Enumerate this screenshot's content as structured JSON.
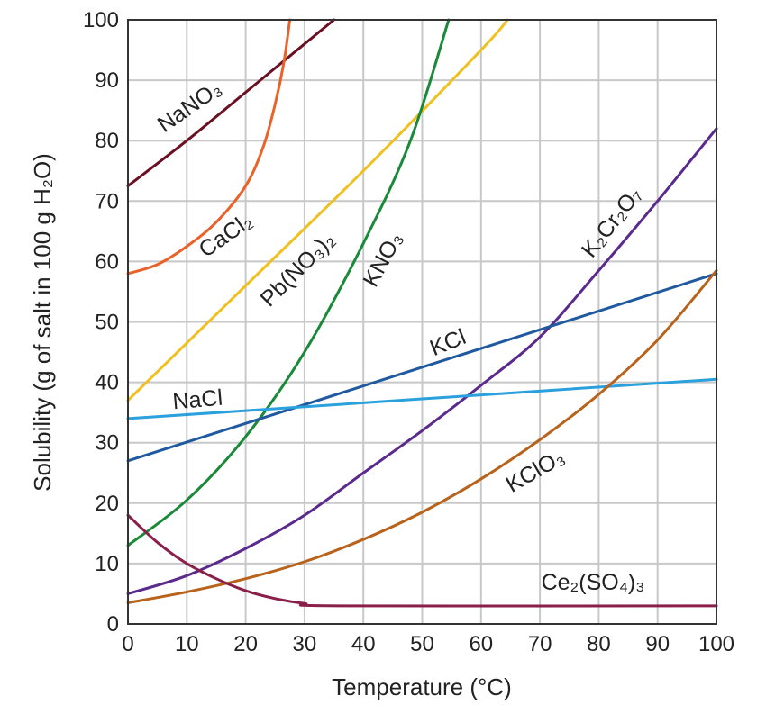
{
  "chart_data": {
    "type": "line",
    "title": "",
    "xlabel": "Temperature (°C)",
    "ylabel": "Solubility (g of salt in 100 g H₂O)",
    "xlim": [
      0,
      100
    ],
    "ylim": [
      0,
      100
    ],
    "grid": true,
    "legend": "none (curves labeled inline)",
    "x_ticks": [
      "0",
      "10",
      "20",
      "30",
      "40",
      "50",
      "60",
      "70",
      "80",
      "90",
      "100"
    ],
    "y_ticks": [
      "0",
      "10",
      "20",
      "30",
      "40",
      "50",
      "60",
      "70",
      "80",
      "90",
      "100"
    ],
    "series": [
      {
        "name": "NaNO₃",
        "color": "#6b1022",
        "points": [
          [
            0,
            72.5
          ],
          [
            10,
            80
          ],
          [
            20,
            88
          ],
          [
            30,
            96
          ],
          [
            35,
            100
          ]
        ]
      },
      {
        "name": "CaCl₂",
        "color": "#e8622a",
        "points": [
          [
            0,
            58
          ],
          [
            5,
            59.5
          ],
          [
            10,
            62.5
          ],
          [
            15,
            66.5
          ],
          [
            20,
            72.5
          ],
          [
            23,
            79
          ],
          [
            25,
            86
          ],
          [
            26.5,
            93
          ],
          [
            27.5,
            100
          ]
        ]
      },
      {
        "name": "Pb(NO₃)₂",
        "color": "#f0c020",
        "points": [
          [
            0,
            37
          ],
          [
            20,
            56
          ],
          [
            40,
            75
          ],
          [
            60,
            95
          ],
          [
            64.5,
            100
          ]
        ]
      },
      {
        "name": "KNO₃",
        "color": "#1a8a3a",
        "points": [
          [
            0,
            13
          ],
          [
            10,
            20.5
          ],
          [
            20,
            31
          ],
          [
            30,
            45
          ],
          [
            40,
            63
          ],
          [
            48,
            80
          ],
          [
            54.5,
            100
          ]
        ]
      },
      {
        "name": "K₂Cr₂O₇",
        "color": "#5a2a8c",
        "points": [
          [
            0,
            5
          ],
          [
            10,
            8
          ],
          [
            20,
            12.5
          ],
          [
            30,
            18
          ],
          [
            40,
            25
          ],
          [
            50,
            32
          ],
          [
            60,
            39.5
          ],
          [
            70,
            47.5
          ],
          [
            80,
            58.5
          ],
          [
            90,
            70
          ],
          [
            100,
            82
          ]
        ]
      },
      {
        "name": "KCl",
        "color": "#1f5aa0",
        "points": [
          [
            0,
            27
          ],
          [
            100,
            58
          ]
        ]
      },
      {
        "name": "NaCl",
        "color": "#2aa0dc",
        "points": [
          [
            0,
            34
          ],
          [
            100,
            40.5
          ]
        ]
      },
      {
        "name": "KClO₃",
        "color": "#b8621a",
        "points": [
          [
            0,
            3.5
          ],
          [
            10,
            5.3
          ],
          [
            20,
            7.5
          ],
          [
            30,
            10.3
          ],
          [
            40,
            14
          ],
          [
            50,
            18.5
          ],
          [
            60,
            24
          ],
          [
            70,
            30.5
          ],
          [
            80,
            38
          ],
          [
            90,
            47
          ],
          [
            100,
            58.5
          ]
        ]
      },
      {
        "name": "Ce₂(SO₄)₃",
        "color": "#8a1f4a",
        "points": [
          [
            0,
            18
          ],
          [
            5,
            13.5
          ],
          [
            10,
            10
          ],
          [
            15,
            7.5
          ],
          [
            20,
            5.5
          ],
          [
            25,
            4.2
          ],
          [
            30,
            3.4
          ],
          [
            36,
            3
          ],
          [
            100,
            3
          ]
        ]
      }
    ]
  }
}
